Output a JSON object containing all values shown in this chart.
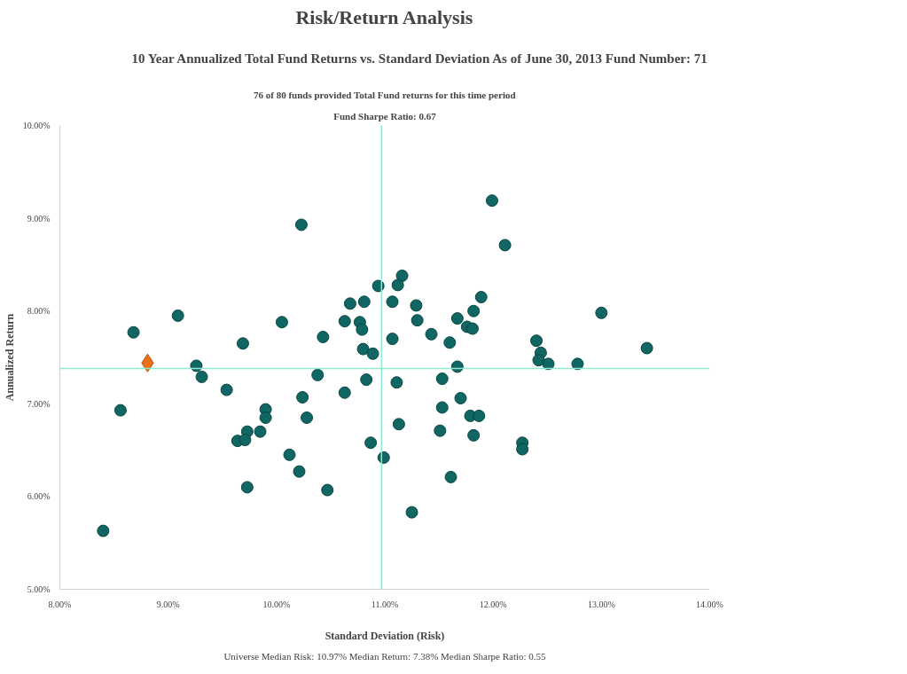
{
  "chart_data": {
    "type": "scatter",
    "title": "Risk/Return Analysis",
    "subtitle": "10 Year Annualized Total Fund Returns vs. Standard Deviation As of June 30, 2013 Fund Number: 71",
    "xlabel": "Standard Deviation (Risk)",
    "ylabel": "Annualized Return",
    "annotations": [
      "76 of 80 funds provided Total Fund returns for this time period",
      "Fund Sharpe Ratio: 0.67",
      "Universe Median Risk: 10.97% Median Return: 7.38% Median Sharpe Ratio: 0.55"
    ],
    "xlim": [
      8,
      14
    ],
    "ylim": [
      5,
      10
    ],
    "xticks": [
      {
        "value": 8,
        "label": "8.00%"
      },
      {
        "value": 9,
        "label": "9.00%"
      },
      {
        "value": 10,
        "label": "10.00%"
      },
      {
        "value": 11,
        "label": "11.00%"
      },
      {
        "value": 12,
        "label": "12.00%"
      },
      {
        "value": 13,
        "label": "13.00%"
      },
      {
        "value": 14,
        "label": "14.00%"
      }
    ],
    "yticks": [
      {
        "value": 5,
        "label": "5.00%"
      },
      {
        "value": 6,
        "label": "6.00%"
      },
      {
        "value": 7,
        "label": "7.00%"
      },
      {
        "value": 8,
        "label": "8.00%"
      },
      {
        "value": 9,
        "label": "9.00%"
      },
      {
        "value": 10,
        "label": "10.00%"
      }
    ],
    "grid": false,
    "ref_lines": [
      {
        "axis": "x",
        "value": 10.97,
        "color": "#8eead3"
      },
      {
        "axis": "y",
        "value": 7.38,
        "color": "#8eead3"
      }
    ],
    "series": [
      {
        "color": "#0f6662",
        "marker": "circle",
        "x": [
          10.23,
          10.94,
          10.68,
          10.81,
          9.09,
          8.68,
          10.05,
          10.63,
          10.77,
          10.79,
          10.43,
          9.69,
          10.8,
          10.89,
          9.26,
          9.31,
          10.38,
          10.83,
          9.54,
          10.63,
          10.24,
          8.56,
          9.9,
          9.9,
          10.28,
          9.73,
          9.85,
          9.64,
          9.71,
          10.87,
          10.12,
          10.99,
          10.21,
          9.73,
          10.47,
          8.4,
          11.16,
          11.12,
          11.07,
          11.29,
          11.89,
          11.82,
          11.3,
          11.67,
          11.76,
          11.81,
          11.43,
          11.07,
          11.6,
          12.4,
          13.0,
          13.42,
          12.44,
          12.42,
          12.51,
          12.78,
          11.67,
          11.53,
          11.11,
          11.7,
          11.53,
          11.79,
          11.87,
          11.13,
          11.51,
          11.82,
          12.27,
          12.27,
          11.61,
          11.25,
          11.99,
          12.11
        ],
        "values": [
          8.93,
          8.27,
          8.08,
          8.1,
          7.95,
          7.77,
          7.88,
          7.89,
          7.88,
          7.8,
          7.72,
          7.65,
          7.59,
          7.54,
          7.41,
          7.29,
          7.31,
          7.26,
          7.15,
          7.12,
          7.07,
          6.93,
          6.94,
          6.85,
          6.85,
          6.7,
          6.7,
          6.6,
          6.61,
          6.58,
          6.45,
          6.42,
          6.27,
          6.1,
          6.07,
          5.63,
          8.38,
          8.28,
          8.1,
          8.06,
          8.15,
          8.0,
          7.9,
          7.92,
          7.83,
          7.81,
          7.75,
          7.7,
          7.66,
          7.68,
          7.98,
          7.6,
          7.55,
          7.47,
          7.43,
          7.43,
          7.4,
          7.27,
          7.23,
          7.06,
          6.96,
          6.87,
          6.87,
          6.78,
          6.71,
          6.66,
          6.58,
          6.51,
          6.21,
          5.83,
          9.19,
          8.71
        ]
      },
      {
        "color": "#e8711a",
        "marker": "diamond",
        "x": [
          8.81
        ],
        "values": [
          7.44
        ]
      }
    ]
  }
}
